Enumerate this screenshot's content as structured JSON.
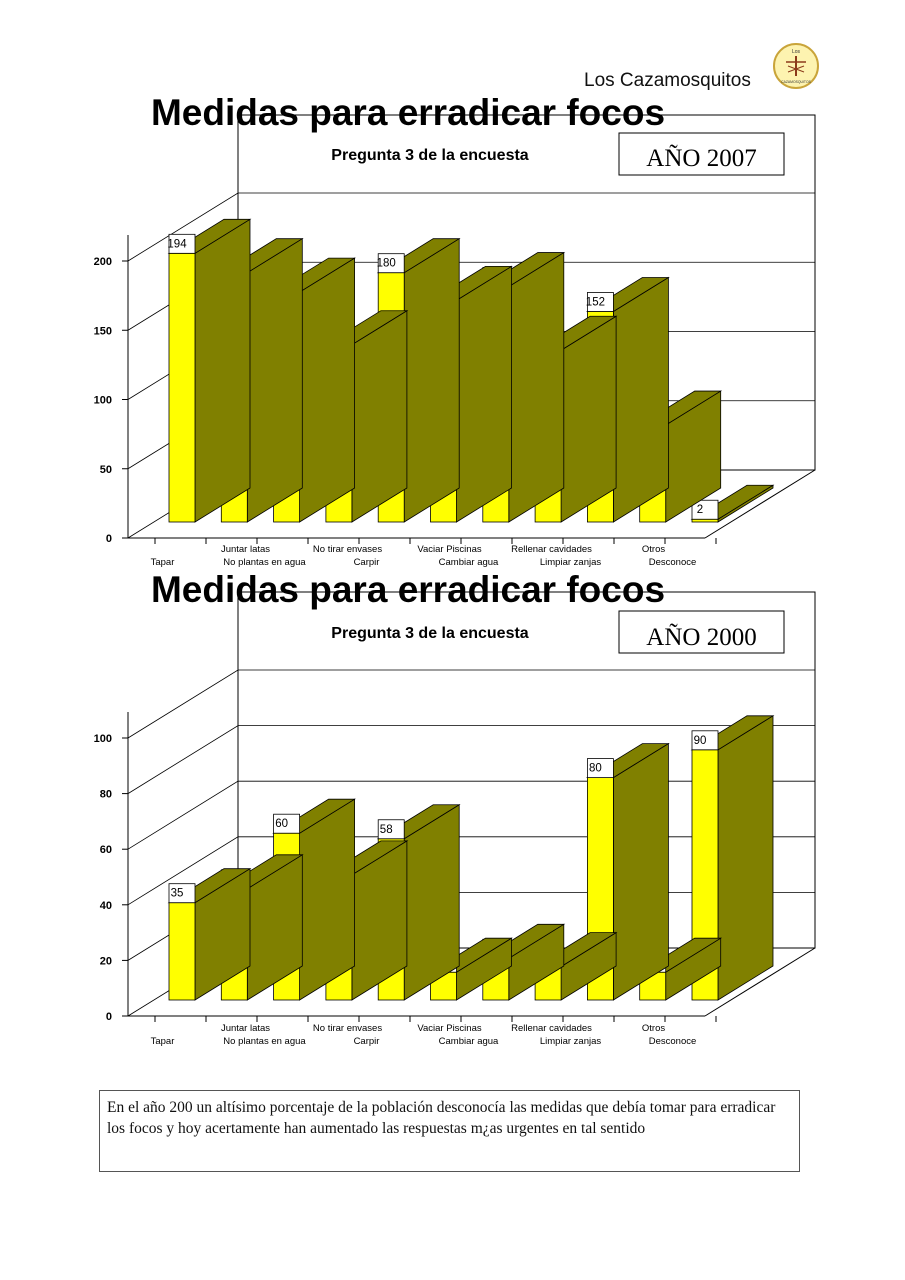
{
  "header": {
    "brand": "Los Cazamosquitos",
    "logo_text_top": "Los",
    "logo_text_bottom": "CAZAMOSQUITOS"
  },
  "colors": {
    "bar_front": "#ffff00",
    "bar_side": "#808000",
    "label_fill": "#ffffff",
    "grid": "#000000"
  },
  "chart_data": [
    {
      "type": "bar",
      "title": "Medidas para erradicar focos",
      "subtitle": "Pregunta 3 de la encuesta",
      "year_box": "AÑO 2007",
      "categories": [
        "Tapar",
        "Juntar latas",
        "No plantas en agua",
        "No tirar envases",
        "Carpir",
        "Vaciar Piscinas",
        "Cambiar agua",
        "Rellenar cavidades",
        "Limpiar zanjas",
        "Otros",
        "Desconoce"
      ],
      "values": [
        194,
        180,
        166,
        128,
        180,
        160,
        170,
        124,
        152,
        70,
        2
      ],
      "yticks": [
        0,
        50,
        100,
        150,
        200
      ],
      "ylim": [
        0,
        200
      ]
    },
    {
      "type": "bar",
      "title": "Medidas para erradicar focos",
      "subtitle": "Pregunta 3 de la encuesta",
      "year_box": "AÑO 2000",
      "categories": [
        "Tapar",
        "Juntar latas",
        "No plantas en agua",
        "No tirar envases",
        "Carpir",
        "Vaciar Piscinas",
        "Cambiar agua",
        "Rellenar cavidades",
        "Limpiar zanjas",
        "Otros",
        "Desconoce"
      ],
      "values": [
        35,
        40,
        60,
        45,
        58,
        10,
        15,
        12,
        80,
        10,
        90
      ],
      "yticks": [
        0,
        20,
        40,
        60,
        80,
        100
      ],
      "ylim": [
        0,
        100
      ]
    }
  ],
  "note": "En el año 200 un altísimo porcentaje de la población desconocía las medidas que debía tomar para erradicar los focos y hoy acertamente han aumentado las respuestas m¿as urgentes en tal sentido"
}
